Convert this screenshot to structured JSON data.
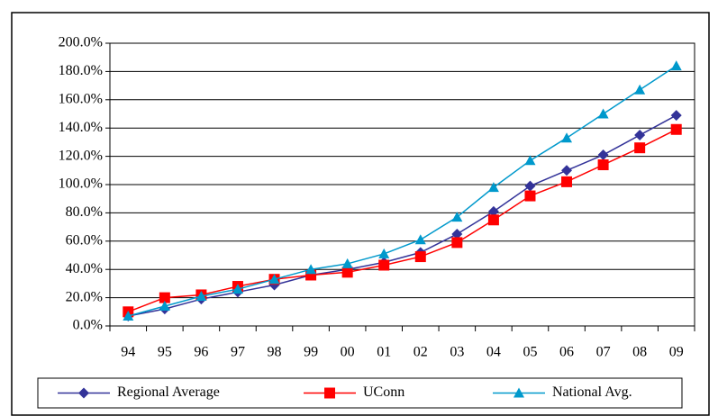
{
  "chart_data": {
    "type": "line",
    "categories": [
      "94",
      "95",
      "96",
      "97",
      "98",
      "99",
      "00",
      "01",
      "02",
      "03",
      "04",
      "05",
      "06",
      "07",
      "08",
      "09"
    ],
    "series": [
      {
        "name": "Regional Average",
        "color": "#333399",
        "marker": "diamond",
        "values": [
          7,
          12,
          19,
          24,
          29,
          36,
          40,
          45,
          52,
          65,
          81,
          99,
          110,
          121,
          135,
          149
        ]
      },
      {
        "name": "UConn",
        "color": "#ff0000",
        "marker": "square",
        "values": [
          10,
          20,
          22,
          28,
          33,
          36,
          38,
          43,
          49,
          59,
          75,
          92,
          102,
          114,
          126,
          139
        ]
      },
      {
        "name": "National Avg.",
        "color": "#0099cc",
        "marker": "triangle",
        "values": [
          7,
          14,
          21,
          26,
          33,
          40,
          44,
          51,
          61,
          77,
          98,
          117,
          133,
          150,
          167,
          184
        ]
      }
    ],
    "ylim": [
      0,
      200
    ],
    "yticks": [
      {
        "value": 0,
        "label": "0.0%"
      },
      {
        "value": 20,
        "label": "20.0%"
      },
      {
        "value": 40,
        "label": "40.0%"
      },
      {
        "value": 60,
        "label": "60.0%"
      },
      {
        "value": 80,
        "label": "80.0%"
      },
      {
        "value": 100,
        "label": "100.0%"
      },
      {
        "value": 120,
        "label": "120.0%"
      },
      {
        "value": 140,
        "label": "140.0%"
      },
      {
        "value": 160,
        "label": "160.0%"
      },
      {
        "value": 180,
        "label": "180.0%"
      },
      {
        "value": 200,
        "label": "200.0%"
      }
    ],
    "grid": true,
    "legend": "bottom"
  }
}
